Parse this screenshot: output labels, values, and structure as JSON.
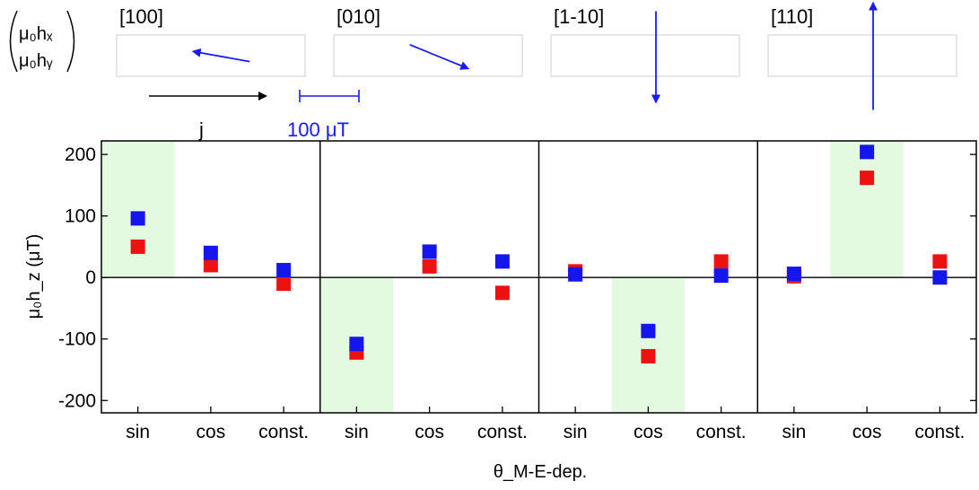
{
  "colors": {
    "series_red": "#ee1111",
    "series_blue": "#1515ee",
    "arrow_blue": "#1a1aff",
    "highlight": "#e3f9e0",
    "box_border": "#dddddd"
  },
  "inset": {
    "vector_label_x": "μ₀hₓ",
    "vector_label_y": "μ₀hᵧ",
    "current_label": "j",
    "scale_label": "100 μT",
    "scale_value_uT": 100,
    "directions": [
      {
        "label": "[100]",
        "hx_uT": -95,
        "hy_uT": 17
      },
      {
        "label": "[010]",
        "hx_uT": 98,
        "hy_uT": -40
      },
      {
        "label": "[1-10]",
        "hx_uT": 0,
        "hy_uT": -153
      },
      {
        "label": "[110]",
        "hx_uT": 0,
        "hy_uT": 180
      }
    ]
  },
  "chart_data": {
    "type": "scatter",
    "ylabel": "μ₀h_z (μT)",
    "xlabel": "θ_M-E-dep.",
    "ylim": [
      -220,
      222
    ],
    "yticks": [
      -200,
      -100,
      0,
      100,
      200
    ],
    "ytick_labels": [
      "-200",
      "-100",
      "0",
      "100",
      "200"
    ],
    "categories": [
      "sin",
      "cos",
      "const."
    ],
    "zero_line": true,
    "panels": [
      {
        "direction": "[100]",
        "highlight": "sin",
        "series": [
          {
            "color": "red",
            "values": [
              50,
              20,
              -10
            ]
          },
          {
            "color": "blue",
            "values": [
              96,
              40,
              12
            ]
          }
        ]
      },
      {
        "direction": "[010]",
        "highlight": "sin",
        "series": [
          {
            "color": "red",
            "values": [
              -122,
              18,
              -25
            ]
          },
          {
            "color": "blue",
            "values": [
              -108,
              42,
              26
            ]
          }
        ]
      },
      {
        "direction": "[1-10]",
        "highlight": "cos",
        "series": [
          {
            "color": "red",
            "values": [
              10,
              -128,
              26
            ]
          },
          {
            "color": "blue",
            "values": [
              5,
              -87,
              3
            ]
          }
        ]
      },
      {
        "direction": "[110]",
        "highlight": "cos",
        "series": [
          {
            "color": "red",
            "values": [
              2,
              162,
              26
            ]
          },
          {
            "color": "blue",
            "values": [
              6,
              204,
              0
            ]
          }
        ]
      }
    ]
  }
}
